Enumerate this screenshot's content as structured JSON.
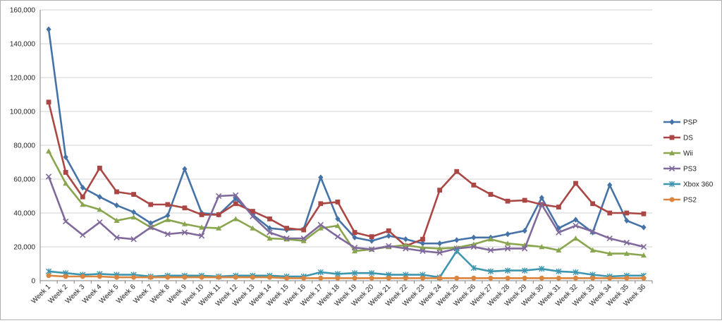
{
  "chart_data": {
    "type": "line",
    "categories": [
      "Week 1",
      "Week 2",
      "Week 3",
      "Week 4",
      "Week 5",
      "Week 6",
      "Week 7",
      "Week 8",
      "Week 9",
      "Week 10",
      "Week 11",
      "Week 12",
      "Week 13",
      "Week 14",
      "Week 15",
      "Week 16",
      "Week 17",
      "Week 18",
      "Week 19",
      "Week 20",
      "Week 21",
      "Week 22",
      "Week 23",
      "Week 24",
      "Week 25",
      "Week 26",
      "Week 27",
      "Week 28",
      "Week 29",
      "Week 30",
      "Week 31",
      "Week 32",
      "Week 33",
      "Week 34",
      "Week 35",
      "Week 36"
    ],
    "ylim": [
      0,
      160000
    ],
    "yticks": [
      0,
      20000,
      40000,
      60000,
      80000,
      100000,
      120000,
      140000,
      160000
    ],
    "ytick_labels": [
      "0",
      "20,000",
      "40,000",
      "60,000",
      "80,000",
      "100,000",
      "120,000",
      "140,000",
      "160,000"
    ],
    "grid": true,
    "legend_position": "right",
    "series": [
      {
        "name": "PSP",
        "color": "#4572A7",
        "marker": "diamond",
        "values": [
          148500,
          73000,
          55000,
          49500,
          44500,
          40500,
          34000,
          38500,
          66000,
          40000,
          39000,
          48500,
          39000,
          31000,
          30000,
          30500,
          61000,
          36500,
          25500,
          23500,
          26500,
          24500,
          22000,
          22000,
          24000,
          25500,
          25500,
          27500,
          29500,
          49000,
          31000,
          36000,
          28500,
          56500,
          35500,
          31500
        ]
      },
      {
        "name": "DS",
        "color": "#AA4643",
        "marker": "square",
        "values": [
          105500,
          64000,
          49500,
          66500,
          52500,
          51000,
          45000,
          45000,
          43000,
          39000,
          39000,
          45500,
          41000,
          36500,
          31000,
          30000,
          45500,
          46500,
          28500,
          26000,
          29500,
          20500,
          24500,
          53500,
          64500,
          56500,
          51000,
          47000,
          47500,
          45000,
          43500,
          57500,
          45500,
          40000,
          40000,
          39500
        ]
      },
      {
        "name": "Wii",
        "color": "#89A54E",
        "marker": "triangle",
        "values": [
          76500,
          57500,
          45000,
          42000,
          35500,
          37500,
          31500,
          36000,
          33500,
          31500,
          31000,
          36500,
          31000,
          25000,
          24500,
          23500,
          31000,
          32500,
          17500,
          18500,
          20000,
          21000,
          19500,
          19000,
          19500,
          21500,
          24500,
          22000,
          21000,
          20000,
          18000,
          25000,
          18000,
          16000,
          16000,
          15000
        ]
      },
      {
        "name": "PS3",
        "color": "#80699B",
        "marker": "x",
        "values": [
          61500,
          35000,
          27000,
          34500,
          25500,
          24500,
          31500,
          27500,
          28500,
          26500,
          50000,
          50500,
          38000,
          28500,
          25000,
          25000,
          33000,
          26000,
          19500,
          18500,
          20500,
          19000,
          17500,
          16500,
          19000,
          20000,
          18000,
          19000,
          19000,
          45000,
          28500,
          32500,
          29000,
          25000,
          22500,
          20000
        ]
      },
      {
        "name": "Xbox 360",
        "color": "#3D96AE",
        "marker": "star",
        "values": [
          5500,
          4500,
          3500,
          4000,
          3500,
          3500,
          2500,
          3000,
          3000,
          3000,
          2500,
          3000,
          3000,
          3000,
          2500,
          2500,
          5000,
          4000,
          4500,
          4500,
          3500,
          3500,
          3500,
          2000,
          17500,
          7500,
          5500,
          6000,
          6000,
          7000,
          5500,
          5000,
          3500,
          2500,
          3000,
          3000
        ]
      },
      {
        "name": "PS2",
        "color": "#DB843D",
        "marker": "circle",
        "values": [
          3000,
          2500,
          2500,
          2500,
          2000,
          2000,
          2000,
          2000,
          2000,
          2000,
          2000,
          2000,
          2000,
          2000,
          1500,
          1500,
          1500,
          1500,
          1500,
          1500,
          1500,
          1500,
          1500,
          1500,
          1500,
          1500,
          1500,
          1500,
          1500,
          1500,
          1500,
          1500,
          1500,
          1500,
          1500,
          1500
        ]
      }
    ]
  }
}
